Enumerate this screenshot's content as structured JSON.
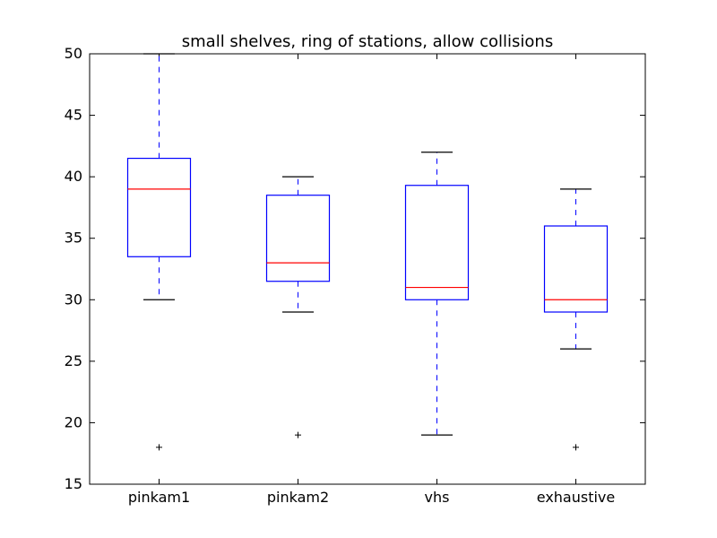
{
  "chart_data": {
    "type": "box",
    "title": "small shelves, ring of stations, allow collisions",
    "xlabel": "",
    "ylabel": "",
    "ylim": [
      15,
      50
    ],
    "yticks": [
      15,
      20,
      25,
      30,
      35,
      40,
      45,
      50
    ],
    "grid": false,
    "legend": "none",
    "categories": [
      "pinkam1",
      "pinkam2",
      "vhs",
      "exhaustive"
    ],
    "boxes": [
      {
        "category": "pinkam1",
        "whisker_low": 30,
        "q1": 33.5,
        "median": 39,
        "q3": 41.5,
        "whisker_high": 50,
        "outliers": [
          18
        ]
      },
      {
        "category": "pinkam2",
        "whisker_low": 29,
        "q1": 31.5,
        "median": 33,
        "q3": 38.5,
        "whisker_high": 40,
        "outliers": [
          19
        ]
      },
      {
        "category": "vhs",
        "whisker_low": 19,
        "q1": 30,
        "median": 31,
        "q3": 39.3,
        "whisker_high": 42,
        "outliers": []
      },
      {
        "category": "exhaustive",
        "whisker_low": 26,
        "q1": 29,
        "median": 30,
        "q3": 36,
        "whisker_high": 39,
        "outliers": [
          18
        ]
      }
    ],
    "colors": {
      "box": "#0000ff",
      "whisker": "#0000ff",
      "cap": "#000000",
      "median": "#ff0000",
      "outlier": "#000000",
      "axes": "#000000"
    }
  }
}
